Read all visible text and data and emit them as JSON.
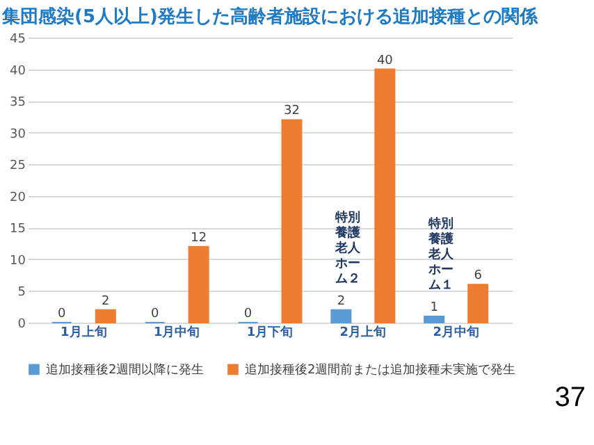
{
  "chart_data": {
    "type": "bar",
    "title": "集団感染(5人以上)発生した高齢者施設における追加接種との関係",
    "categories": [
      "1月上旬",
      "1月中旬",
      "1月下旬",
      "2月上旬",
      "2月中旬"
    ],
    "series": [
      {
        "name": "追加接種後2週間以降に発生",
        "color": "#5b9bd5",
        "values": [
          0,
          0,
          0,
          2,
          1
        ]
      },
      {
        "name": "追加接種後2週間前または追加接種未実施で発生",
        "color": "#ed7d31",
        "values": [
          2,
          12,
          32,
          40,
          6
        ]
      }
    ],
    "ylim": [
      0,
      45
    ],
    "yticks": [
      0,
      5,
      10,
      15,
      20,
      25,
      30,
      35,
      40,
      45
    ],
    "grid": "y",
    "legend": "bottom",
    "data_labels": true,
    "annotations": [
      "特別養護老人ホーム２",
      "特別養護老人ホーム１",
      "37"
    ]
  }
}
